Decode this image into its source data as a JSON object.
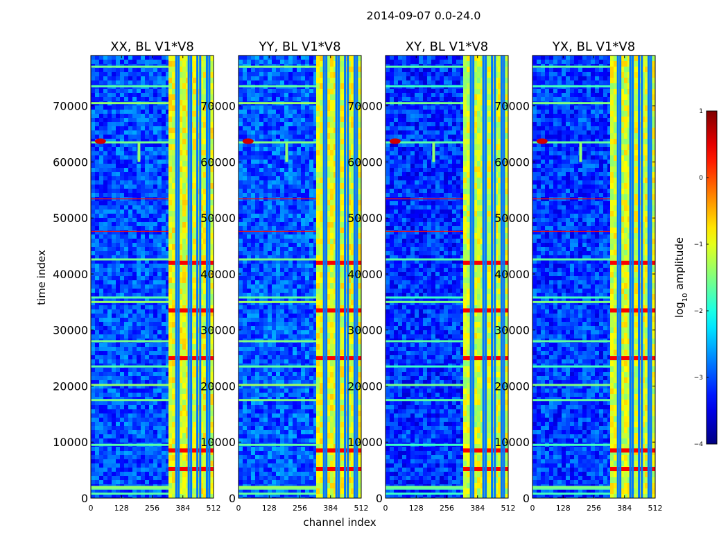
{
  "figure": {
    "suptitle": "2014-09-07 0.0-24.0",
    "xlabel": "channel index",
    "ylabel": "time index"
  },
  "chart_data": {
    "type": "heatmap",
    "xlim": [
      0,
      512
    ],
    "ylim": [
      0,
      79000
    ],
    "xticks": [
      0,
      128,
      256,
      384,
      512
    ],
    "yticks": [
      0,
      10000,
      20000,
      30000,
      40000,
      50000,
      60000,
      70000
    ],
    "colorbar": {
      "label": "log10 amplitude",
      "label_base": "log",
      "label_sub": "10",
      "label_rest": " amplitude",
      "range": [
        -4,
        1
      ],
      "ticks": [
        1,
        0,
        -1,
        -2,
        -3,
        -4
      ],
      "tick_labels": [
        "1",
        "0",
        "−1",
        "−2",
        "−3",
        "−4"
      ],
      "colormap": "jet"
    },
    "panels": [
      {
        "title": "XX, BL V1*V8",
        "bg": -3.0,
        "band_channels": [
          324,
          512
        ],
        "band_level": -1.0
      },
      {
        "title": "YY, BL V1*V8",
        "bg": -2.95,
        "band_channels": [
          324,
          512
        ],
        "band_level": -1.0
      },
      {
        "title": "XY, BL V1*V8",
        "bg": -3.15,
        "band_channels": [
          324,
          512
        ],
        "band_level": -1.1
      },
      {
        "title": "YX, BL V1*V8",
        "bg": -3.1,
        "band_channels": [
          324,
          512
        ],
        "band_level": -1.05
      }
    ]
  },
  "colors": {
    "background": "#ffffff",
    "axis": "#000000"
  }
}
